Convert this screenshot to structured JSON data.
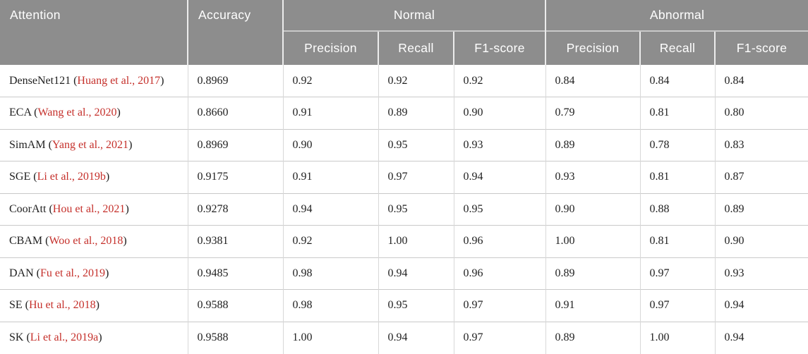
{
  "colors": {
    "header_bg": "#8d8d8d",
    "header_text": "#ffffff",
    "body_text": "#1f1f1f",
    "citation_red": "#c5302b",
    "row_line": "#c9c9c9",
    "col_line": "#d8d8d8"
  },
  "table": {
    "header": {
      "attention": "Attention",
      "accuracy": "Accuracy",
      "groups": [
        {
          "label": "Normal",
          "sub": [
            "Precision",
            "Recall",
            "F1-score"
          ]
        },
        {
          "label": "Abnormal",
          "sub": [
            "Precision",
            "Recall",
            "F1-score"
          ]
        }
      ]
    },
    "punct": {
      "open": " (",
      "close": ")"
    },
    "rows": [
      {
        "name": "DenseNet121",
        "citation": "Huang et al., 2017",
        "accuracy": "0.8969",
        "normal": [
          "0.92",
          "0.92",
          "0.92"
        ],
        "abnormal": [
          "0.84",
          "0.84",
          "0.84"
        ]
      },
      {
        "name": "ECA",
        "citation": "Wang et al., 2020",
        "accuracy": "0.8660",
        "normal": [
          "0.91",
          "0.89",
          "0.90"
        ],
        "abnormal": [
          "0.79",
          "0.81",
          "0.80"
        ]
      },
      {
        "name": "SimAM",
        "citation": "Yang et al., 2021",
        "accuracy": "0.8969",
        "normal": [
          "0.90",
          "0.95",
          "0.93"
        ],
        "abnormal": [
          "0.89",
          "0.78",
          "0.83"
        ]
      },
      {
        "name": "SGE",
        "citation": "Li et al., 2019b",
        "accuracy": "0.9175",
        "normal": [
          "0.91",
          "0.97",
          "0.94"
        ],
        "abnormal": [
          "0.93",
          "0.81",
          "0.87"
        ]
      },
      {
        "name": "CoorAtt",
        "citation": "Hou et al., 2021",
        "accuracy": "0.9278",
        "normal": [
          "0.94",
          "0.95",
          "0.95"
        ],
        "abnormal": [
          "0.90",
          "0.88",
          "0.89"
        ]
      },
      {
        "name": "CBAM",
        "citation": "Woo et al., 2018",
        "accuracy": "0.9381",
        "normal": [
          "0.92",
          "1.00",
          "0.96"
        ],
        "abnormal": [
          "1.00",
          "0.81",
          "0.90"
        ]
      },
      {
        "name": "DAN",
        "citation": "Fu et al., 2019",
        "accuracy": "0.9485",
        "normal": [
          "0.98",
          "0.94",
          "0.96"
        ],
        "abnormal": [
          "0.89",
          "0.97",
          "0.93"
        ]
      },
      {
        "name": "SE",
        "citation": "Hu et al., 2018",
        "accuracy": "0.9588",
        "normal": [
          "0.98",
          "0.95",
          "0.97"
        ],
        "abnormal": [
          "0.91",
          "0.97",
          "0.94"
        ]
      },
      {
        "name": "SK",
        "citation": "Li et al., 2019a",
        "accuracy": "0.9588",
        "normal": [
          "1.00",
          "0.94",
          "0.97"
        ],
        "abnormal": [
          "0.89",
          "1.00",
          "0.94"
        ]
      }
    ]
  }
}
